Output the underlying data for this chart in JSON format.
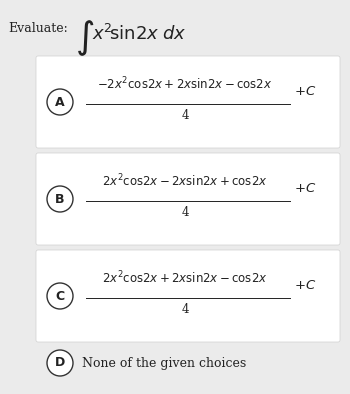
{
  "background_color": "#ebebeb",
  "white_bg": "#ffffff",
  "title_label": "Evaluate:",
  "options": [
    {
      "letter": "A",
      "numerator": "$-2x^2\\mathrm{cos}2x + 2x\\mathrm{sin}2x - \\mathrm{cos}2x$",
      "denominator": "4",
      "suffix": "$+ C$"
    },
    {
      "letter": "B",
      "numerator": "$2x^2\\mathrm{cos}2x - 2x\\mathrm{sin}2x + \\mathrm{cos}2x$",
      "denominator": "4",
      "suffix": "$+ C$"
    },
    {
      "letter": "C",
      "numerator": "$2x^2\\mathrm{cos}2x + 2x\\mathrm{sin}2x - \\mathrm{cos}2x$",
      "denominator": "4",
      "suffix": "$+ C$"
    },
    {
      "letter": "D",
      "text": "None of the given choices"
    }
  ],
  "circle_color": "#333333",
  "text_color": "#222222",
  "font_size_title": 9,
  "font_size_integral": 13,
  "font_size_option": 8.5,
  "font_size_letter": 9,
  "font_size_d_text": 9
}
